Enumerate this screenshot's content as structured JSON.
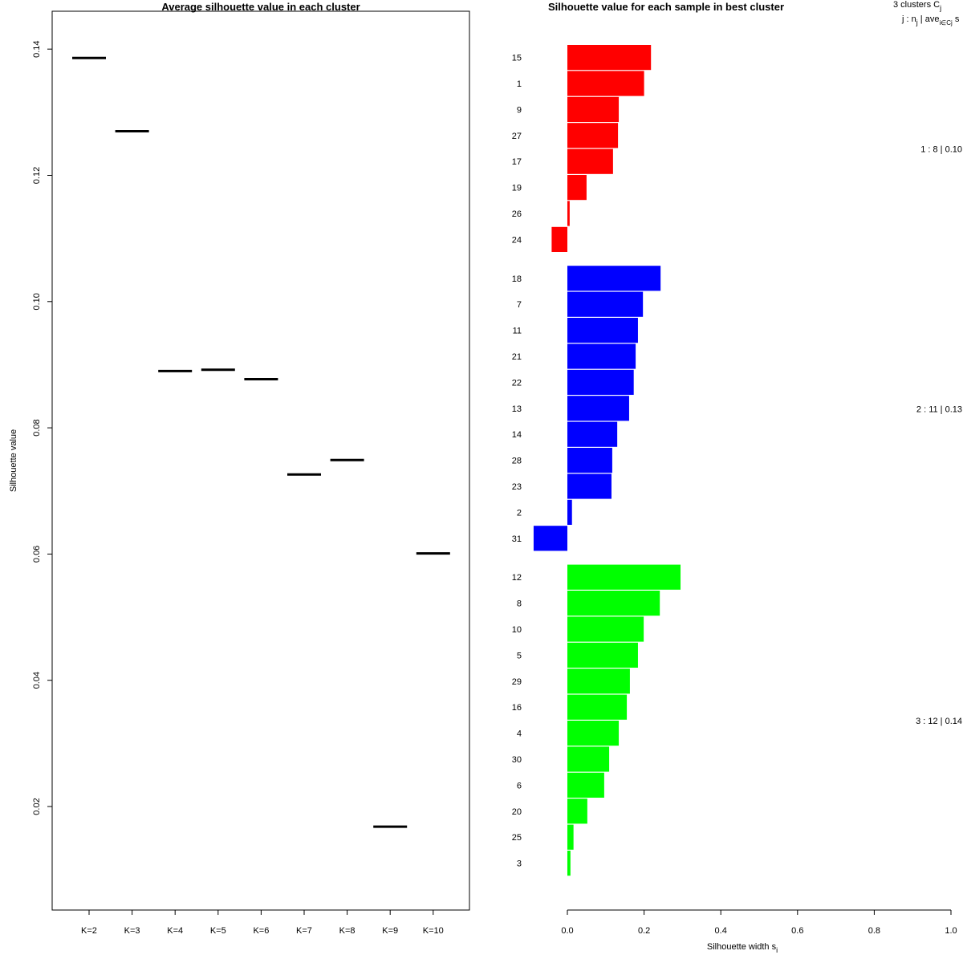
{
  "chart_data": [
    {
      "type": "line",
      "title": "Average silhouette value in each cluster",
      "xlabel": "",
      "ylabel": "Silhouette value",
      "categories": [
        "K=2",
        "K=3",
        "K=4",
        "K=5",
        "K=6",
        "K=7",
        "K=8",
        "K=9",
        "K=10"
      ],
      "values": [
        0.1386,
        0.127,
        0.089,
        0.0892,
        0.0877,
        0.0726,
        0.0749,
        0.0168,
        0.0601
      ],
      "yticks": [
        0.02,
        0.04,
        0.06,
        0.08,
        0.1,
        0.12,
        0.14
      ],
      "ytick_labels": [
        "0.02",
        "0.04",
        "0.06",
        "0.08",
        "0.10",
        "0.12",
        "0.14"
      ],
      "ylim": [
        0.0036,
        0.146
      ],
      "grid": false
    },
    {
      "type": "bar",
      "orientation": "horizontal",
      "title": "Silhouette value for each sample in best cluster",
      "xlabel": "Silhouette width s",
      "xlabel_sub": "i",
      "xlim": [
        0.0,
        1.0
      ],
      "xticks": [
        0.0,
        0.2,
        0.4,
        0.6,
        0.8,
        1.0
      ],
      "xtick_labels": [
        "0.0",
        "0.2",
        "0.4",
        "0.6",
        "0.8",
        "1.0"
      ],
      "header": {
        "line1_a": "3  clusters  C",
        "line1_sub": "j",
        "line2_a": "j :  n",
        "line2_sub1": "j",
        "line2_b": " | ave",
        "line2_sub2": "i∈Cj",
        "line2_c": "  s"
      },
      "clusters": [
        {
          "id": 1,
          "color": "#ff0000",
          "summary": "1 :   8  |  0.10",
          "samples": [
            {
              "label": "15",
              "value": 0.218
            },
            {
              "label": "1",
              "value": 0.2
            },
            {
              "label": "9",
              "value": 0.134
            },
            {
              "label": "27",
              "value": 0.132
            },
            {
              "label": "17",
              "value": 0.119
            },
            {
              "label": "19",
              "value": 0.05
            },
            {
              "label": "26",
              "value": 0.006
            },
            {
              "label": "24",
              "value": -0.041
            }
          ]
        },
        {
          "id": 2,
          "color": "#0000ff",
          "summary": "2 :  11  |  0.13",
          "samples": [
            {
              "label": "18",
              "value": 0.243
            },
            {
              "label": "7",
              "value": 0.197
            },
            {
              "label": "11",
              "value": 0.184
            },
            {
              "label": "21",
              "value": 0.178
            },
            {
              "label": "22",
              "value": 0.173
            },
            {
              "label": "13",
              "value": 0.161
            },
            {
              "label": "14",
              "value": 0.13
            },
            {
              "label": "28",
              "value": 0.117
            },
            {
              "label": "23",
              "value": 0.115
            },
            {
              "label": "2",
              "value": 0.012
            },
            {
              "label": "31",
              "value": -0.088
            }
          ]
        },
        {
          "id": 3,
          "color": "#00ff00",
          "summary": "3 :  12  |  0.14",
          "samples": [
            {
              "label": "12",
              "value": 0.295
            },
            {
              "label": "8",
              "value": 0.241
            },
            {
              "label": "10",
              "value": 0.199
            },
            {
              "label": "5",
              "value": 0.184
            },
            {
              "label": "29",
              "value": 0.163
            },
            {
              "label": "16",
              "value": 0.155
            },
            {
              "label": "4",
              "value": 0.134
            },
            {
              "label": "30",
              "value": 0.109
            },
            {
              "label": "6",
              "value": 0.096
            },
            {
              "label": "20",
              "value": 0.052
            },
            {
              "label": "25",
              "value": 0.016
            },
            {
              "label": "3",
              "value": 0.008
            }
          ]
        }
      ]
    }
  ]
}
